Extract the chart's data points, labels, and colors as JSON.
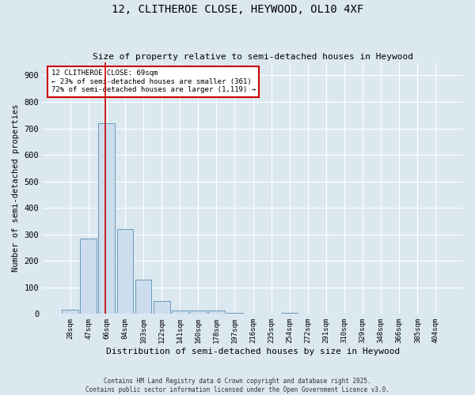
{
  "title1": "12, CLITHEROE CLOSE, HEYWOOD, OL10 4XF",
  "title2": "Size of property relative to semi-detached houses in Heywood",
  "xlabel": "Distribution of semi-detached houses by size in Heywood",
  "ylabel": "Number of semi-detached properties",
  "footnote": "Contains HM Land Registry data © Crown copyright and database right 2025.\nContains public sector information licensed under the Open Government Licence v3.0.",
  "bar_labels": [
    "28sqm",
    "47sqm",
    "66sqm",
    "84sqm",
    "103sqm",
    "122sqm",
    "141sqm",
    "160sqm",
    "178sqm",
    "197sqm",
    "216sqm",
    "235sqm",
    "254sqm",
    "272sqm",
    "291sqm",
    "310sqm",
    "329sqm",
    "348sqm",
    "366sqm",
    "385sqm",
    "404sqm"
  ],
  "bar_values": [
    15,
    283,
    720,
    320,
    130,
    50,
    12,
    12,
    12,
    5,
    0,
    0,
    5,
    0,
    0,
    0,
    0,
    0,
    0,
    0,
    0
  ],
  "bar_color": "#ccdded",
  "bar_edge_color": "#6699bb",
  "vline_pos": 1.93,
  "vline_color": "#cc0000",
  "annotation_title": "12 CLITHEROE CLOSE: 69sqm",
  "annotation_line1": "← 23% of semi-detached houses are smaller (361)",
  "annotation_line2": "72% of semi-detached houses are larger (1,119) →",
  "annotation_box_color": "#ffffff",
  "annotation_box_edge": "#cc0000",
  "bg_color": "#dce8f0",
  "ylim": [
    0,
    950
  ],
  "yticks": [
    0,
    100,
    200,
    300,
    400,
    500,
    600,
    700,
    800,
    900
  ]
}
